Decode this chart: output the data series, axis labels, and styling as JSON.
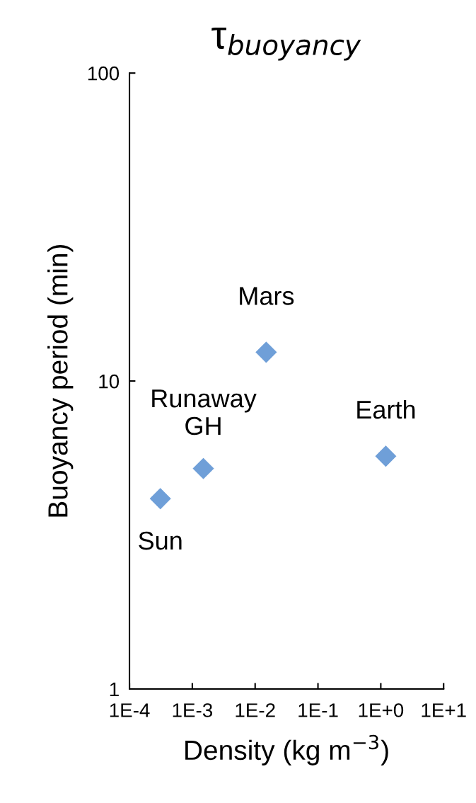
{
  "chart_data": {
    "type": "scatter",
    "title": "τ$_{buoyancy}$",
    "xlabel": "Density (kg m$^{−3}$)",
    "ylabel": "Buoyancy period (min)",
    "x": [
      0.00031,
      0.0015,
      0.015,
      1.2
    ],
    "series": [
      {
        "color": "#6f9fd8",
        "values": [
          4.15,
          5.2,
          12.4,
          5.7
        ]
      }
    ],
    "annotations": [
      {
        "text": "Sun",
        "x": 0.00031,
        "y": 4.15
      },
      {
        "text": "Runaway\nGH",
        "x": 0.0015,
        "y": 5.2
      },
      {
        "text": "Mars",
        "x": 0.015,
        "y": 12.4
      },
      {
        "text": "Earth",
        "x": 1.2,
        "y": 5.7
      }
    ],
    "log": "xy",
    "marker": "diamond",
    "grid": false,
    "legend": false,
    "xlim": [
      0.0001,
      10
    ],
    "ylim": [
      1,
      100
    ],
    "xticks": [
      {
        "value": 0.0001,
        "label": "1E-4"
      },
      {
        "value": 0.001,
        "label": "1E-3"
      },
      {
        "value": 0.01,
        "label": "1E-2"
      },
      {
        "value": 0.1,
        "label": "1E-1"
      },
      {
        "value": 1,
        "label": "1E+0"
      },
      {
        "value": 10,
        "label": "1E+1"
      }
    ],
    "yticks": [
      1,
      10,
      100
    ]
  }
}
